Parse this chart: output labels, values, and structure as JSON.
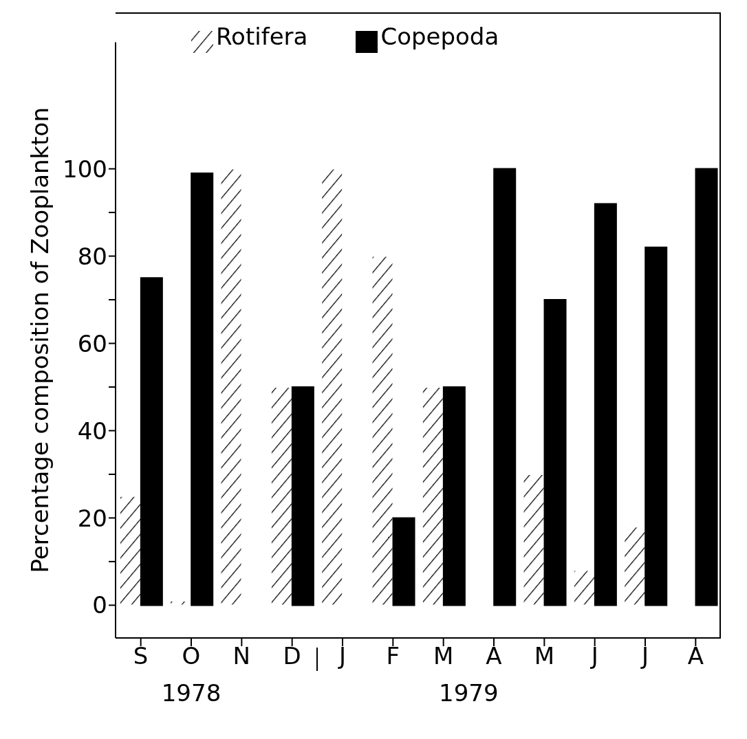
{
  "chart_data": {
    "type": "bar",
    "ylabel": "Percentage composition of Zooplankton",
    "categories": [
      "S",
      "O",
      "N",
      "D",
      "J",
      "F",
      "M",
      "A",
      "M",
      "J",
      "J",
      "A"
    ],
    "series": [
      {
        "name": "Rotifera",
        "color": "#ffffff",
        "values": [
          25,
          1,
          100,
          50,
          100,
          80,
          50,
          0,
          30,
          8,
          18,
          0
        ]
      },
      {
        "name": "Copepoda",
        "color": "#000000",
        "values": [
          75,
          99,
          0,
          50,
          0,
          20,
          50,
          100,
          70,
          92,
          82,
          100
        ]
      }
    ],
    "ylim": [
      -7.5,
      129
    ],
    "yticks": [
      0,
      {
        "value": 10,
        "label": null
      },
      20,
      {
        "value": 30,
        "label": null
      },
      40,
      {
        "value": 50,
        "label": null
      },
      60,
      {
        "value": 70,
        "label": null
      },
      80,
      {
        "value": 90,
        "label": null
      },
      100
    ],
    "annotations": [
      "1978",
      "1979"
    ],
    "legend": "top left",
    "grid": false
  }
}
